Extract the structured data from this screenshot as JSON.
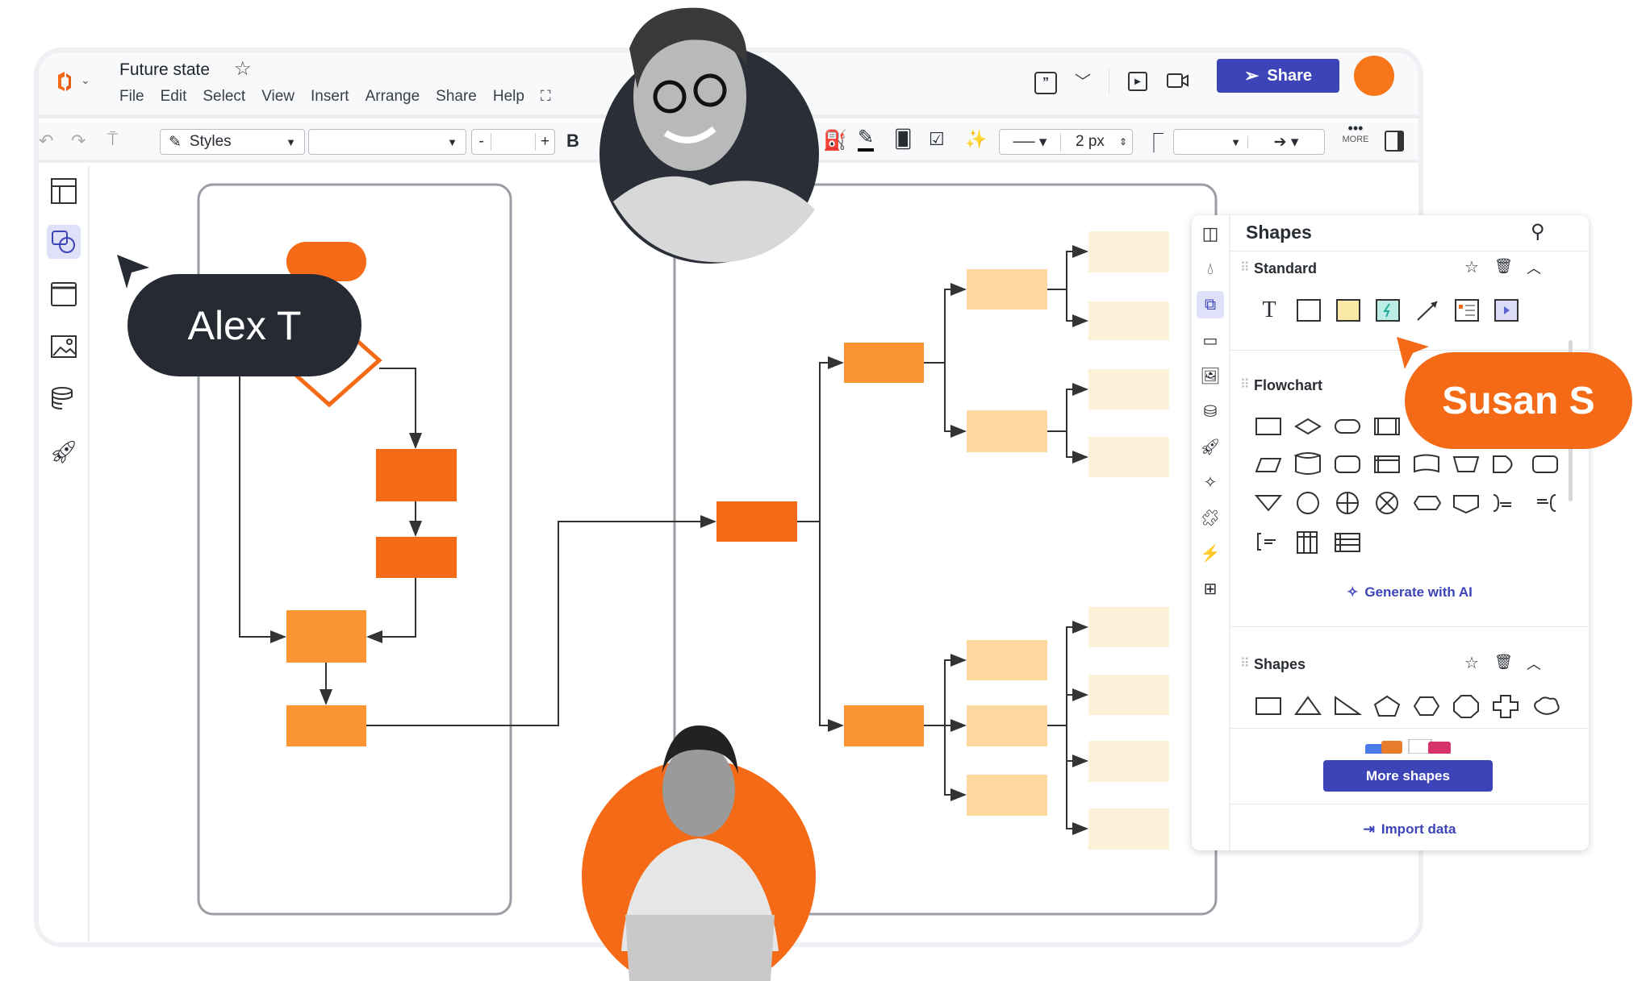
{
  "app": {
    "title": "Future state",
    "menu": [
      "File",
      "Edit",
      "Select",
      "View",
      "Insert",
      "Arrange",
      "Share",
      "Help"
    ],
    "share_label": "Share",
    "avatar_color": "#f7761a"
  },
  "toolbar": {
    "styles_label": "Styles",
    "font_value": "",
    "size_minus": "-",
    "size_value": "",
    "size_plus": "+",
    "bold": "B",
    "line_width": "2 px",
    "more_label": "MORE"
  },
  "left_sidebar": {
    "items": [
      "panels-icon",
      "shapes-icon",
      "frame-icon",
      "image-icon",
      "data-icon",
      "rocket-icon"
    ],
    "active": "shapes-icon"
  },
  "collaborators": [
    {
      "name": "Alex T",
      "color": "#262b33"
    },
    {
      "name": "Susan S",
      "color": "#f46a16"
    }
  ],
  "panel": {
    "title": "Shapes",
    "sections": [
      {
        "title": "Standard"
      },
      {
        "title": "Flowchart"
      },
      {
        "title": "Shapes"
      }
    ],
    "generate_ai": "Generate with AI",
    "more_shapes": "More shapes",
    "import_data": "Import data"
  },
  "colors": {
    "accent": "#3d44b8",
    "orange": "#f46a16",
    "orange_mid": "#fb9533",
    "orange_light": "#fdd9a0",
    "orange_pale": "#fdf0d8"
  }
}
